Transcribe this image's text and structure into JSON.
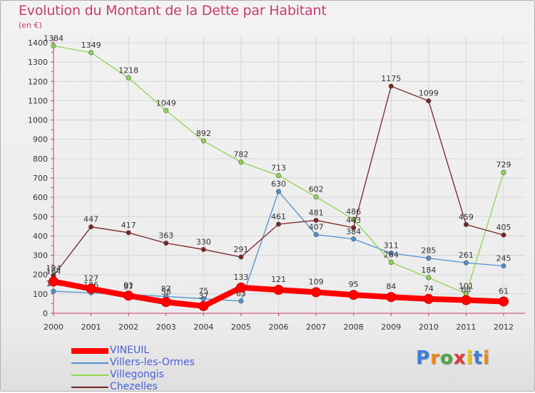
{
  "header": {
    "title": "Evolution du Montant de la Dette par Habitant",
    "unit": "(en €)"
  },
  "logo": {
    "text": "Proxiti",
    "colors": [
      "#3d7fd9",
      "#e88a1a",
      "#4aa843",
      "#e03a3a",
      "#e8c51a",
      "#3d7fd9",
      "#e88a1a"
    ]
  },
  "chart_data": {
    "type": "line",
    "title": "Evolution du Montant de la Dette par Habitant",
    "ylabel": "(en €)",
    "xlabel": "",
    "x": [
      "2000",
      "2001",
      "2002",
      "2003",
      "2004",
      "2005",
      "2006",
      "2007",
      "2008",
      "2009",
      "2010",
      "2011",
      "2012"
    ],
    "ylim": [
      0,
      1400
    ],
    "yticks": [
      "0",
      "100",
      "200",
      "300",
      "400",
      "500",
      "600",
      "700",
      "800",
      "900",
      "1000",
      "1100",
      "1200",
      "1300",
      "1400"
    ],
    "grid": true,
    "legend_position": "bottom-left",
    "series": [
      {
        "name": "Villers-les-Ormes",
        "color": "#4f8fd0",
        "values": [
          114,
          106,
          97,
          87,
          75,
          63,
          630,
          407,
          384,
          311,
          285,
          261,
          245
        ],
        "labels": [
          "114",
          "106",
          "97",
          "87",
          "75",
          "63",
          "630",
          "407",
          "384",
          "311",
          "285",
          "261",
          "245"
        ]
      },
      {
        "name": "Villegongis",
        "color": "#8fd44f",
        "values": [
          1384,
          1349,
          1218,
          1049,
          892,
          782,
          713,
          602,
          486,
          264,
          184,
          101,
          729
        ],
        "labels": [
          "1384",
          "1349",
          "1218",
          "1049",
          "892",
          "782",
          "713",
          "602",
          "486",
          "264",
          "184",
          "101",
          "729"
        ]
      },
      {
        "name": "Chezelles",
        "color": "#7a2424",
        "values": [
          194,
          447,
          417,
          363,
          330,
          291,
          461,
          481,
          443,
          1175,
          1099,
          459,
          405
        ],
        "labels": [
          "194",
          "447",
          "417",
          "363",
          "330",
          "291",
          "461",
          "481",
          "443",
          "1175",
          "1099",
          "459",
          "405"
        ]
      },
      {
        "name": "VINEUIL",
        "color": "#ff0000",
        "values": [
          164,
          127,
          91,
          58,
          37,
          133,
          121,
          109,
          95,
          84,
          74,
          68,
          61
        ],
        "labels": [
          "164",
          "127",
          "91",
          "58",
          "37",
          "133",
          "121",
          "109",
          "95",
          "84",
          "74",
          "68",
          "61"
        ]
      }
    ]
  },
  "legend": {
    "items": [
      {
        "name": "VINEUIL",
        "color": "#ff0000"
      },
      {
        "name": "Villers-les-Ormes",
        "color": "#4f8fd0"
      },
      {
        "name": "Villegongis",
        "color": "#8fd44f"
      },
      {
        "name": "Chezelles",
        "color": "#7a2424"
      }
    ]
  }
}
